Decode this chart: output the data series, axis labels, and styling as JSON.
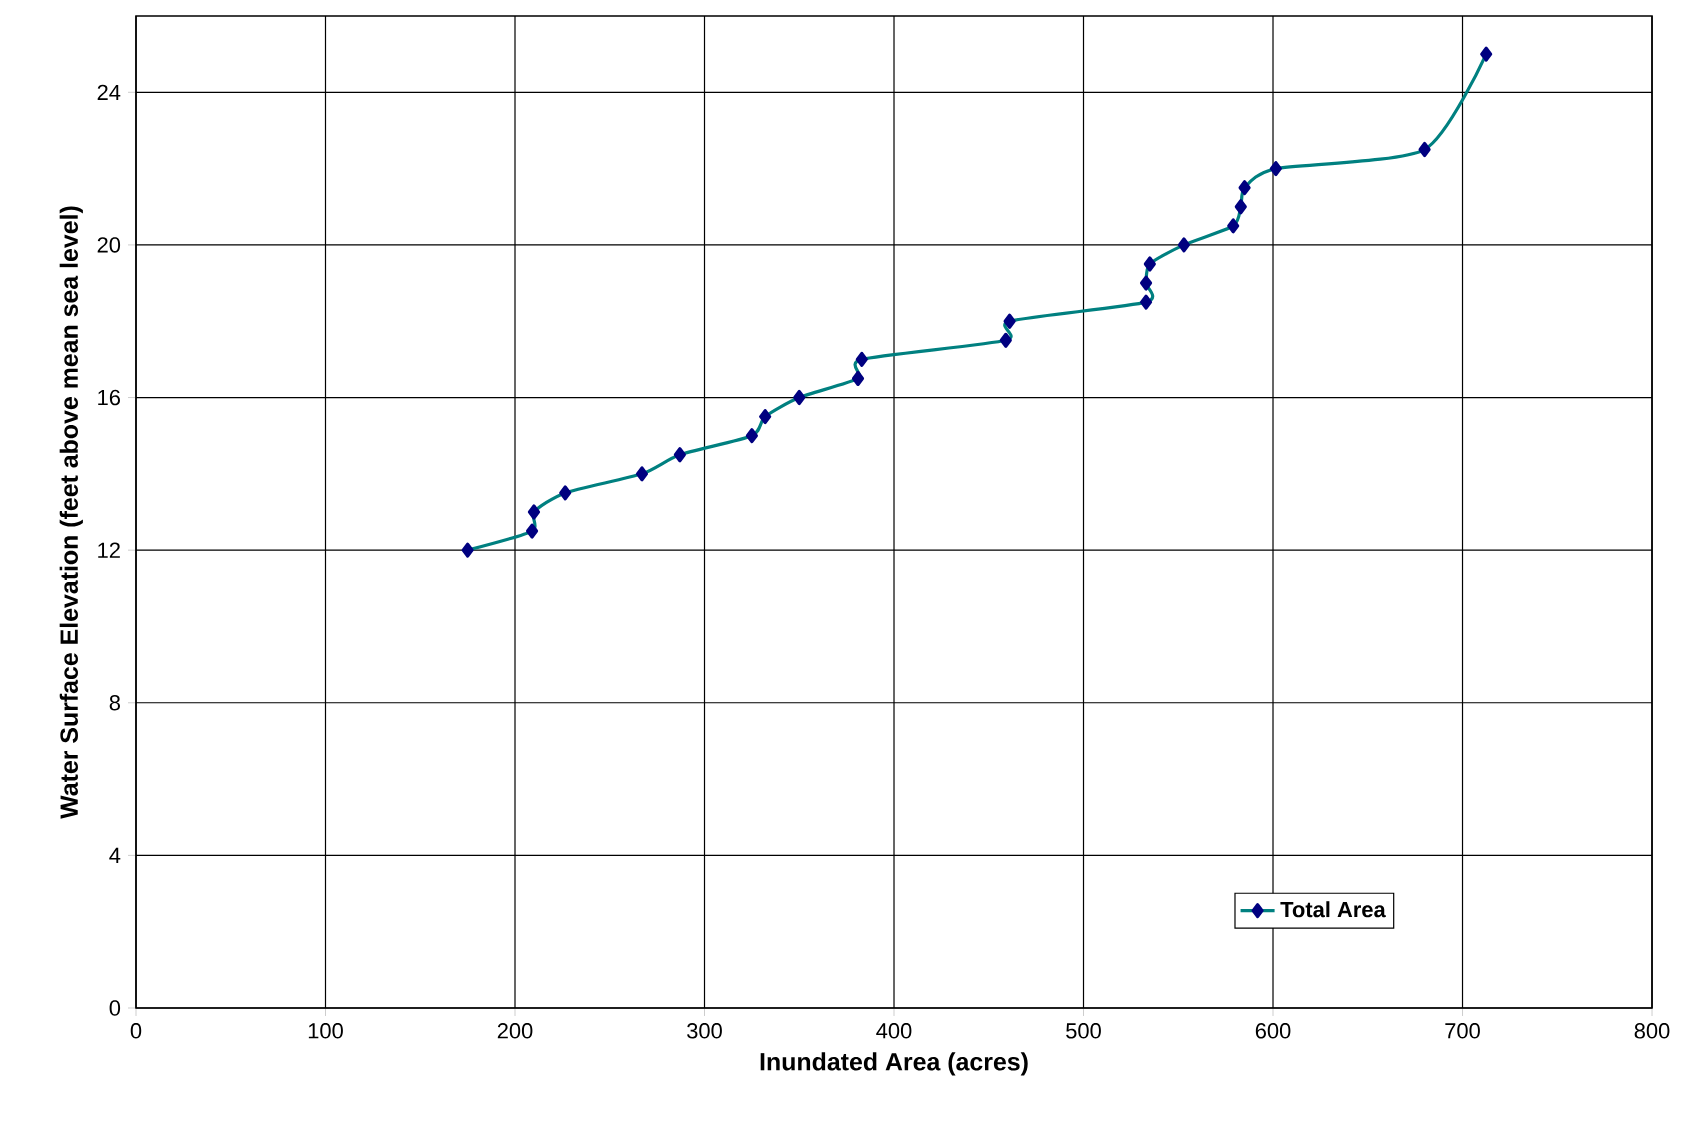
{
  "chart_data": {
    "type": "line",
    "xlabel": "Inundated Area (acres)",
    "ylabel": "Water Surface Elevation (feet above mean sea level)",
    "x": [
      175,
      209,
      210,
      226.5,
      267,
      287,
      325,
      332,
      350,
      381,
      383,
      459,
      461,
      533,
      533,
      535,
      553,
      579,
      583,
      585,
      601.5,
      680,
      712.5
    ],
    "series": [
      {
        "name": "Total  Area",
        "color": "#008080",
        "values": [
          12,
          12.5,
          13,
          13.5,
          14,
          14.5,
          15,
          15.5,
          16,
          16.5,
          17,
          17.5,
          18,
          18.5,
          19,
          19.5,
          20,
          20.5,
          21,
          21.5,
          22,
          22.5,
          25
        ]
      }
    ],
    "xlim": [
      0,
      800
    ],
    "xticks": [
      0,
      100,
      200,
      300,
      400,
      500,
      600,
      700,
      800
    ],
    "ylim": [
      0,
      26
    ],
    "yticks": [
      0,
      4,
      8,
      12,
      16,
      20,
      24
    ],
    "grid": true,
    "legend": "bottom right",
    "marker": "diamond",
    "line_style": "solid"
  }
}
